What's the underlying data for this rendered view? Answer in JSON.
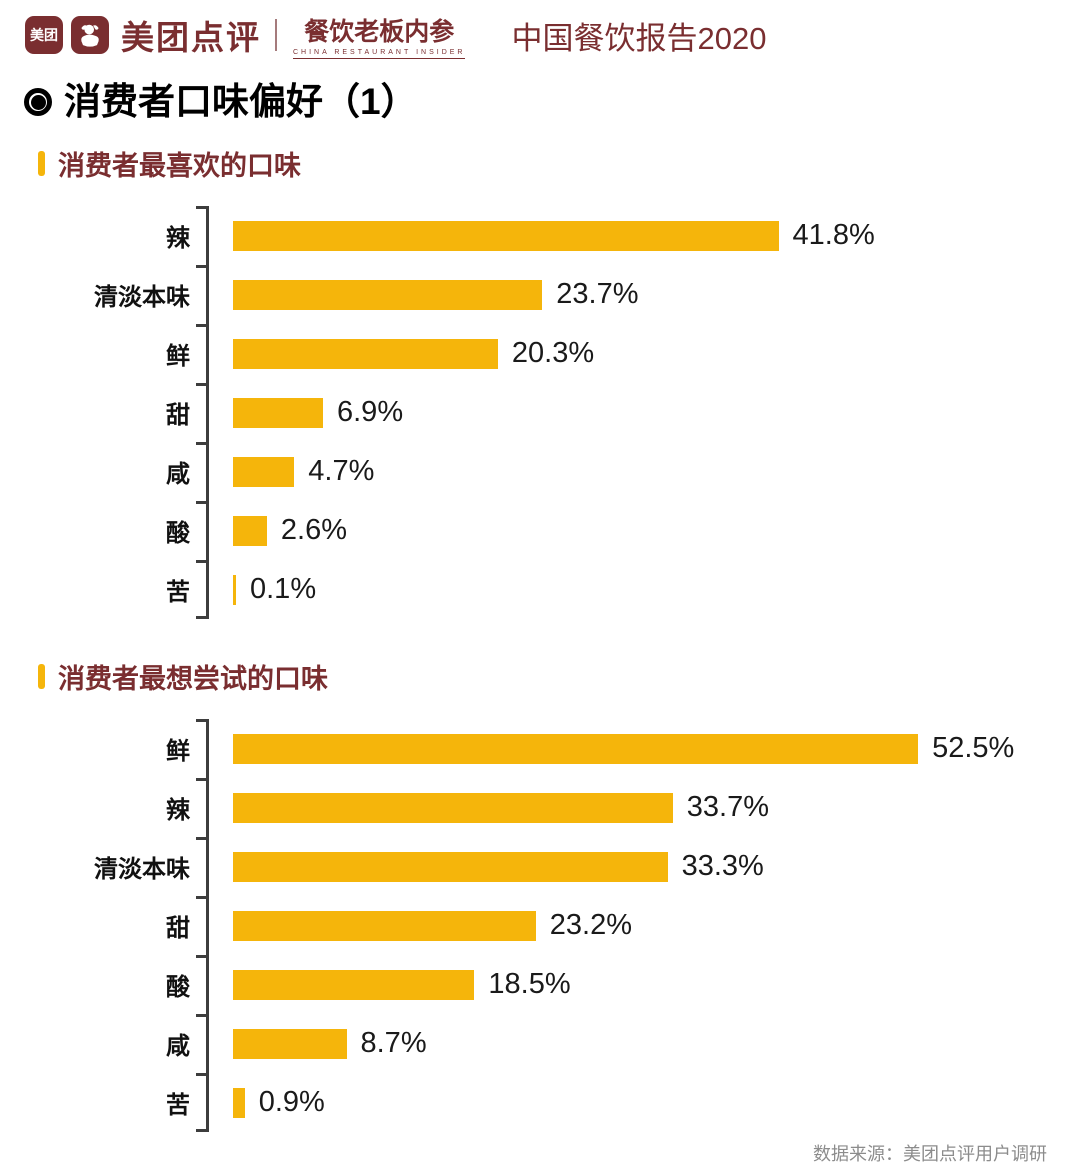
{
  "header": {
    "meituan_badge": "美团",
    "brand": "美团点评",
    "sub_brand": "餐饮老板内参",
    "sub_brand_en": "CHINA RESTAURANT INSIDER",
    "report_title": "中国餐饮报告2020",
    "brand_color": "#7a2e30"
  },
  "page": {
    "title": "消费者口味偏好（1）"
  },
  "chart_data": [
    {
      "type": "bar",
      "orientation": "horizontal",
      "title": "消费者最喜欢的口味",
      "categories": [
        "辣",
        "清淡本味",
        "鲜",
        "甜",
        "咸",
        "酸",
        "苦"
      ],
      "values": [
        41.8,
        23.7,
        20.3,
        6.9,
        4.7,
        2.6,
        0.1
      ],
      "value_suffix": "%",
      "bar_color": "#f5b50b",
      "xlim": [
        0,
        55
      ],
      "grid": false,
      "value_labels": "outside-end",
      "axis_color": "#3d3d3d"
    },
    {
      "type": "bar",
      "orientation": "horizontal",
      "title": "消费者最想尝试的口味",
      "categories": [
        "鲜",
        "辣",
        "清淡本味",
        "甜",
        "酸",
        "咸",
        "苦"
      ],
      "values": [
        52.5,
        33.7,
        33.3,
        23.2,
        18.5,
        8.7,
        0.9
      ],
      "value_suffix": "%",
      "bar_color": "#f5b50b",
      "xlim": [
        0,
        55
      ],
      "grid": false,
      "value_labels": "outside-end",
      "axis_color": "#3d3d3d"
    }
  ],
  "footer": {
    "source": "数据来源：美团点评用户调研"
  }
}
